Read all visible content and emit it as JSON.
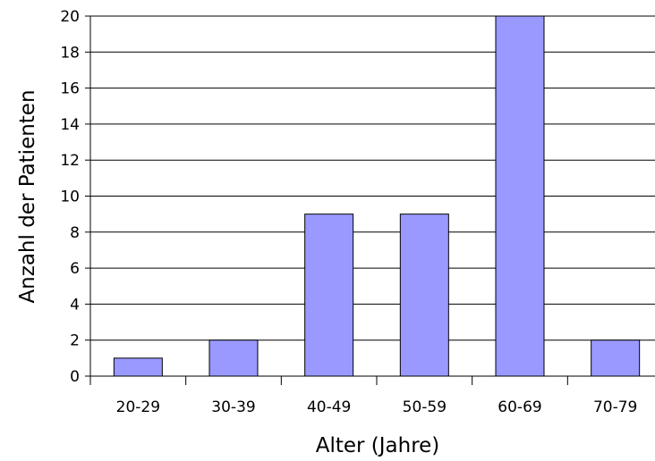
{
  "chart_data": {
    "type": "bar",
    "title": "",
    "xlabel": "Alter (Jahre)",
    "ylabel": "Anzahl der Patienten",
    "categories": [
      "20-29",
      "30-39",
      "40-49",
      "50-59",
      "60-69",
      "70-79"
    ],
    "values": [
      1,
      2,
      9,
      9,
      20,
      2
    ],
    "ylim": [
      0,
      20
    ],
    "yticks": [
      "0",
      "2",
      "4",
      "6",
      "8",
      "10",
      "12",
      "14",
      "16",
      "18",
      "20"
    ],
    "grid": true,
    "legend": "none",
    "colors": {
      "bar": "#9999ff",
      "bar_stroke": "#000000",
      "grid": "#000000"
    }
  }
}
